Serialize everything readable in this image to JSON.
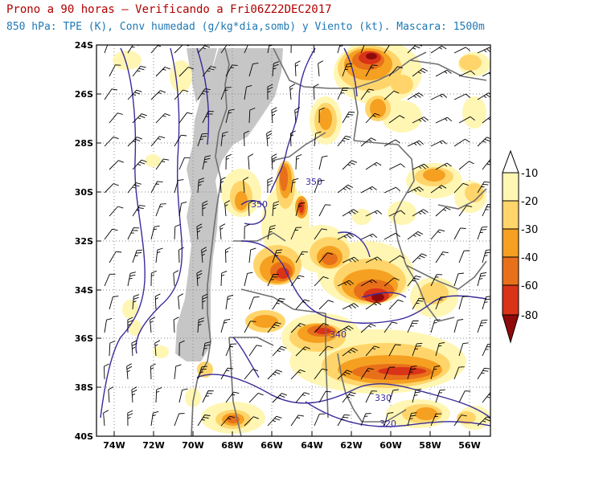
{
  "titles": {
    "line1": "Prono a 90 horas – Verificando a Fri06Z22DEC2017",
    "line2": "850 hPa: TPE (K), Conv humedad (g/kg*dia,somb) y Viento (kt). Mascara: 1500m"
  },
  "map": {
    "lat_labels": [
      "24S",
      "26S",
      "28S",
      "30S",
      "32S",
      "34S",
      "36S",
      "38S",
      "40S"
    ],
    "lon_labels": [
      "74W",
      "72W",
      "70W",
      "68W",
      "66W",
      "64W",
      "62W",
      "60W",
      "58W",
      "56W"
    ],
    "contour_labels": [
      "350",
      "350",
      "340",
      "330",
      "320"
    ]
  },
  "colorbar": {
    "labels": [
      "-10",
      "-20",
      "-30",
      "-40",
      "-60",
      "-80"
    ],
    "colors": [
      "#fff6b3",
      "#ffd56b",
      "#f5a021",
      "#e8701a",
      "#d93318",
      "#8f0a0a"
    ]
  }
}
